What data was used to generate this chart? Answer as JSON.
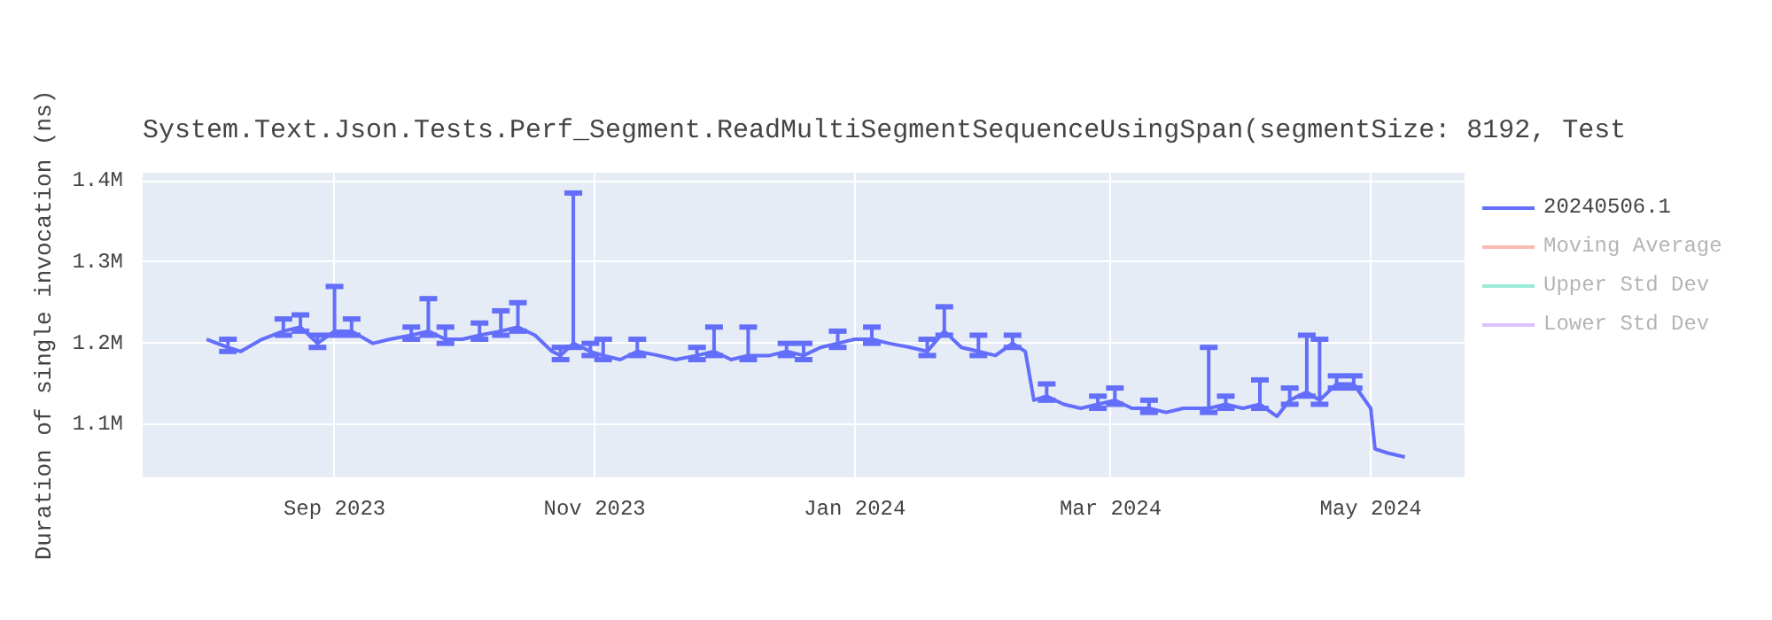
{
  "chart_data": {
    "type": "line",
    "title": "System.Text.Json.Tests.Perf_Segment.ReadMultiSegmentSequenceUsingSpan(segmentSize: 8192, Test",
    "ylabel": "Duration of single invocation (ns)",
    "x": [
      "2023-08-02",
      "2023-08-07",
      "2023-08-10",
      "2023-08-15",
      "2023-08-20",
      "2023-08-24",
      "2023-08-28",
      "2023-09-01",
      "2023-09-05",
      "2023-09-10",
      "2023-09-14",
      "2023-09-19",
      "2023-09-23",
      "2023-09-27",
      "2023-10-01",
      "2023-10-05",
      "2023-10-10",
      "2023-10-14",
      "2023-10-18",
      "2023-10-22",
      "2023-10-24",
      "2023-10-27",
      "2023-10-31",
      "2023-11-03",
      "2023-11-07",
      "2023-11-11",
      "2023-11-16",
      "2023-11-20",
      "2023-11-25",
      "2023-11-29",
      "2023-12-03",
      "2023-12-07",
      "2023-12-12",
      "2023-12-16",
      "2023-12-20",
      "2023-12-24",
      "2023-12-28",
      "2024-01-01",
      "2024-01-05",
      "2024-01-09",
      "2024-01-14",
      "2024-01-18",
      "2024-01-22",
      "2024-01-26",
      "2024-01-30",
      "2024-02-03",
      "2024-02-07",
      "2024-02-10",
      "2024-02-12",
      "2024-02-15",
      "2024-02-19",
      "2024-02-23",
      "2024-02-27",
      "2024-03-02",
      "2024-03-06",
      "2024-03-10",
      "2024-03-14",
      "2024-03-18",
      "2024-03-24",
      "2024-03-28",
      "2024-04-01",
      "2024-04-05",
      "2024-04-09",
      "2024-04-12",
      "2024-04-16",
      "2024-04-19",
      "2024-04-23",
      "2024-04-27",
      "2024-05-01",
      "2024-05-02",
      "2024-05-05",
      "2024-05-09"
    ],
    "xlim": [
      "2023-07-18",
      "2024-05-23"
    ],
    "xticks": [
      {
        "value": "2023-09-01",
        "label": "Sep 2023"
      },
      {
        "value": "2023-11-01",
        "label": "Nov 2023"
      },
      {
        "value": "2024-01-01",
        "label": "Jan 2024"
      },
      {
        "value": "2024-03-01",
        "label": "Mar 2024"
      },
      {
        "value": "2024-05-01",
        "label": "May 2024"
      }
    ],
    "ylim": [
      1035000,
      1410000
    ],
    "yticks": [
      {
        "value": 1100000,
        "label": "1.1M"
      },
      {
        "value": 1200000,
        "label": "1.2M"
      },
      {
        "value": 1300000,
        "label": "1.3M"
      },
      {
        "value": 1400000,
        "label": "1.4M"
      }
    ],
    "grid": true,
    "legend": "top right",
    "series": [
      {
        "name": "20240506.1",
        "color": "#636efa",
        "values": [
          1205000,
          1195000,
          1190000,
          1205000,
          1215000,
          1220000,
          1200000,
          1215000,
          1215000,
          1200000,
          1205000,
          1210000,
          1215000,
          1205000,
          1205000,
          1210000,
          1215000,
          1220000,
          1210000,
          1190000,
          1185000,
          1200000,
          1190000,
          1185000,
          1180000,
          1190000,
          1185000,
          1180000,
          1185000,
          1190000,
          1180000,
          1185000,
          1185000,
          1190000,
          1185000,
          1195000,
          1200000,
          1205000,
          1205000,
          1200000,
          1195000,
          1190000,
          1215000,
          1195000,
          1190000,
          1185000,
          1200000,
          1190000,
          1130000,
          1135000,
          1125000,
          1120000,
          1125000,
          1130000,
          1120000,
          1120000,
          1115000,
          1120000,
          1120000,
          1125000,
          1120000,
          1125000,
          1110000,
          1130000,
          1140000,
          1130000,
          1150000,
          1150000,
          1120000,
          1070000,
          1065000,
          1060000
        ],
        "errors": [
          null,
          [
            1190000,
            1205000
          ],
          null,
          null,
          [
            1210000,
            1230000
          ],
          [
            1215000,
            1235000
          ],
          [
            1195000,
            1210000
          ],
          [
            1210000,
            1270000
          ],
          [
            1210000,
            1230000
          ],
          null,
          null,
          [
            1205000,
            1220000
          ],
          [
            1210000,
            1255000
          ],
          [
            1200000,
            1220000
          ],
          null,
          [
            1205000,
            1225000
          ],
          [
            1210000,
            1240000
          ],
          [
            1215000,
            1250000
          ],
          null,
          null,
          [
            1180000,
            1195000
          ],
          [
            1195000,
            1385000
          ],
          [
            1185000,
            1200000
          ],
          [
            1180000,
            1205000
          ],
          null,
          [
            1185000,
            1205000
          ],
          null,
          null,
          [
            1180000,
            1195000
          ],
          [
            1185000,
            1220000
          ],
          null,
          [
            1180000,
            1220000
          ],
          null,
          [
            1185000,
            1200000
          ],
          [
            1180000,
            1200000
          ],
          null,
          [
            1195000,
            1215000
          ],
          null,
          [
            1200000,
            1220000
          ],
          null,
          null,
          [
            1185000,
            1205000
          ],
          [
            1210000,
            1245000
          ],
          null,
          [
            1185000,
            1210000
          ],
          null,
          [
            1195000,
            1210000
          ],
          null,
          null,
          [
            1130000,
            1150000
          ],
          null,
          null,
          [
            1120000,
            1135000
          ],
          [
            1125000,
            1145000
          ],
          null,
          [
            1115000,
            1130000
          ],
          null,
          null,
          [
            1115000,
            1195000
          ],
          [
            1120000,
            1135000
          ],
          null,
          [
            1120000,
            1155000
          ],
          null,
          [
            1125000,
            1145000
          ],
          [
            1135000,
            1210000
          ],
          [
            1125000,
            1205000
          ],
          [
            1145000,
            1160000
          ],
          [
            1145000,
            1160000
          ],
          null,
          null,
          null,
          null
        ]
      },
      {
        "name": "Moving Average",
        "color": "#ef553b",
        "values": [
          null,
          null,
          null,
          null,
          null,
          null,
          null,
          null,
          null,
          null,
          null,
          null,
          null,
          null,
          null,
          null,
          null,
          null,
          null,
          null,
          null,
          null,
          null,
          null,
          null,
          null,
          null,
          null,
          null,
          null,
          null,
          null,
          null,
          null,
          null,
          null,
          null,
          null,
          null,
          null,
          null,
          null,
          null,
          null,
          null,
          null,
          null,
          null,
          null,
          null,
          null,
          null,
          null,
          null,
          null,
          null,
          null,
          null,
          null,
          null,
          null,
          null,
          null,
          null,
          null,
          null,
          null,
          null,
          null,
          null,
          null,
          null
        ]
      },
      {
        "name": "Upper Std Dev",
        "color": "#00cc96",
        "values": [
          null,
          null,
          null,
          null,
          null,
          null,
          null,
          null,
          null,
          null,
          null,
          null,
          null,
          null,
          null,
          null,
          null,
          null,
          null,
          null,
          null,
          null,
          null,
          null,
          null,
          null,
          null,
          null,
          null,
          null,
          null,
          null,
          null,
          null,
          null,
          null,
          null,
          null,
          null,
          null,
          null,
          null,
          null,
          null,
          null,
          null,
          null,
          null,
          null,
          null,
          null,
          null,
          null,
          null,
          null,
          null,
          null,
          null,
          null,
          null,
          null,
          null,
          null,
          null,
          null,
          null,
          null,
          null,
          null,
          null,
          null,
          null
        ]
      },
      {
        "name": "Lower Std Dev",
        "color": "#ab63fa",
        "values": [
          null,
          null,
          null,
          null,
          null,
          null,
          null,
          null,
          null,
          null,
          null,
          null,
          null,
          null,
          null,
          null,
          null,
          null,
          null,
          null,
          null,
          null,
          null,
          null,
          null,
          null,
          null,
          null,
          null,
          null,
          null,
          null,
          null,
          null,
          null,
          null,
          null,
          null,
          null,
          null,
          null,
          null,
          null,
          null,
          null,
          null,
          null,
          null,
          null,
          null,
          null,
          null,
          null,
          null,
          null,
          null,
          null,
          null,
          null,
          null,
          null,
          null,
          null,
          null,
          null,
          null,
          null,
          null,
          null,
          null,
          null,
          null
        ]
      }
    ]
  }
}
